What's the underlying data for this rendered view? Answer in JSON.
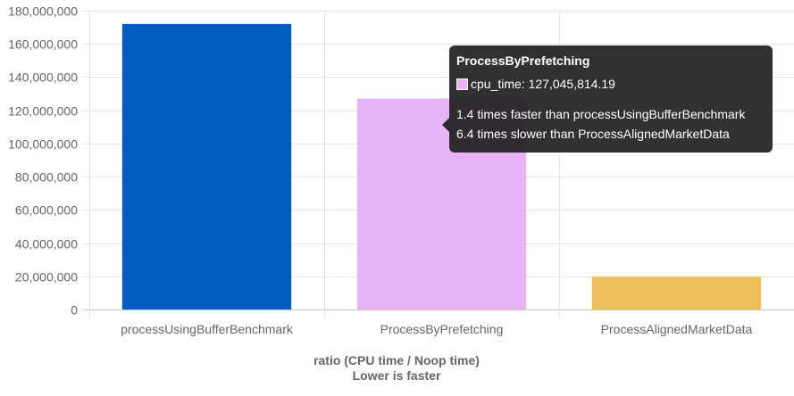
{
  "chart_data": {
    "type": "bar",
    "categories": [
      "processUsingBufferBenchmark",
      "ProcessByPrefetching",
      "ProcessAlignedMarketData"
    ],
    "series": [
      {
        "name": "cpu_time",
        "values": [
          172000000,
          127045814.19,
          19800000
        ],
        "colors": [
          "#005cbf",
          "#e9b4f6",
          "#eec05a"
        ]
      }
    ],
    "ylim": [
      0,
      180000000
    ],
    "yticks": [
      0,
      20000000,
      40000000,
      60000000,
      80000000,
      100000000,
      120000000,
      140000000,
      160000000,
      180000000
    ],
    "ytick_labels": [
      "0",
      "20,000,000",
      "40,000,000",
      "60,000,000",
      "80,000,000",
      "100,000,000",
      "120,000,000",
      "140,000,000",
      "160,000,000",
      "180,000,000"
    ],
    "xlabel_line1": "ratio (CPU time / Noop time)",
    "xlabel_line2": "Lower is faster",
    "grid": true,
    "gridColor": "#e5e5e5",
    "tickColor": "#666666"
  },
  "tooltip": {
    "title": "ProcessByPrefetching",
    "swatch_color": "#e9b4f6",
    "value_text": "cpu_time: 127,045,814.19",
    "line1": "1.4 times faster than processUsingBufferBenchmark",
    "line2": "6.4 times slower than ProcessAlignedMarketData"
  }
}
